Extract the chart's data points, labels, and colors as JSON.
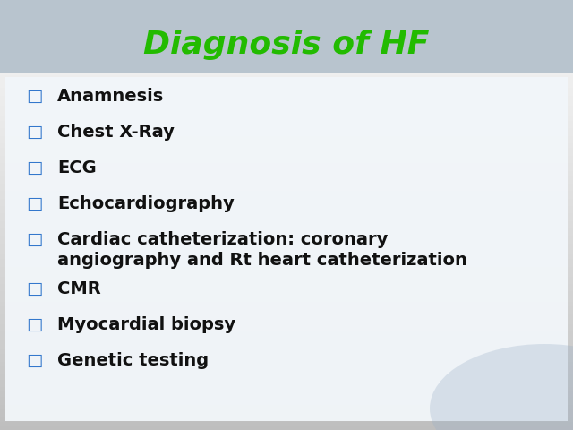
{
  "title": "Diagnosis of HF",
  "title_color": "#22bb00",
  "title_fontsize": 26,
  "title_fontweight": "bold",
  "bullet_color": "#3377cc",
  "text_color": "#111111",
  "bullet_fontsize": 14,
  "bullet_fontweight": "bold",
  "background_top_color": "#b0bcc8",
  "background_bottom_color": "#d8e8f0",
  "content_bg_color": "#f2f6fa",
  "items": [
    "Anamnesis",
    "Chest X-Ray",
    "ECG",
    "Echocardiography",
    "Cardiac catheterization: coronary\nangiography and Rt heart catheterization",
    "CMR",
    "Myocardial biopsy",
    "Genetic testing"
  ],
  "bullet_char": "□",
  "figwidth": 6.4,
  "figheight": 4.8,
  "dpi": 100
}
